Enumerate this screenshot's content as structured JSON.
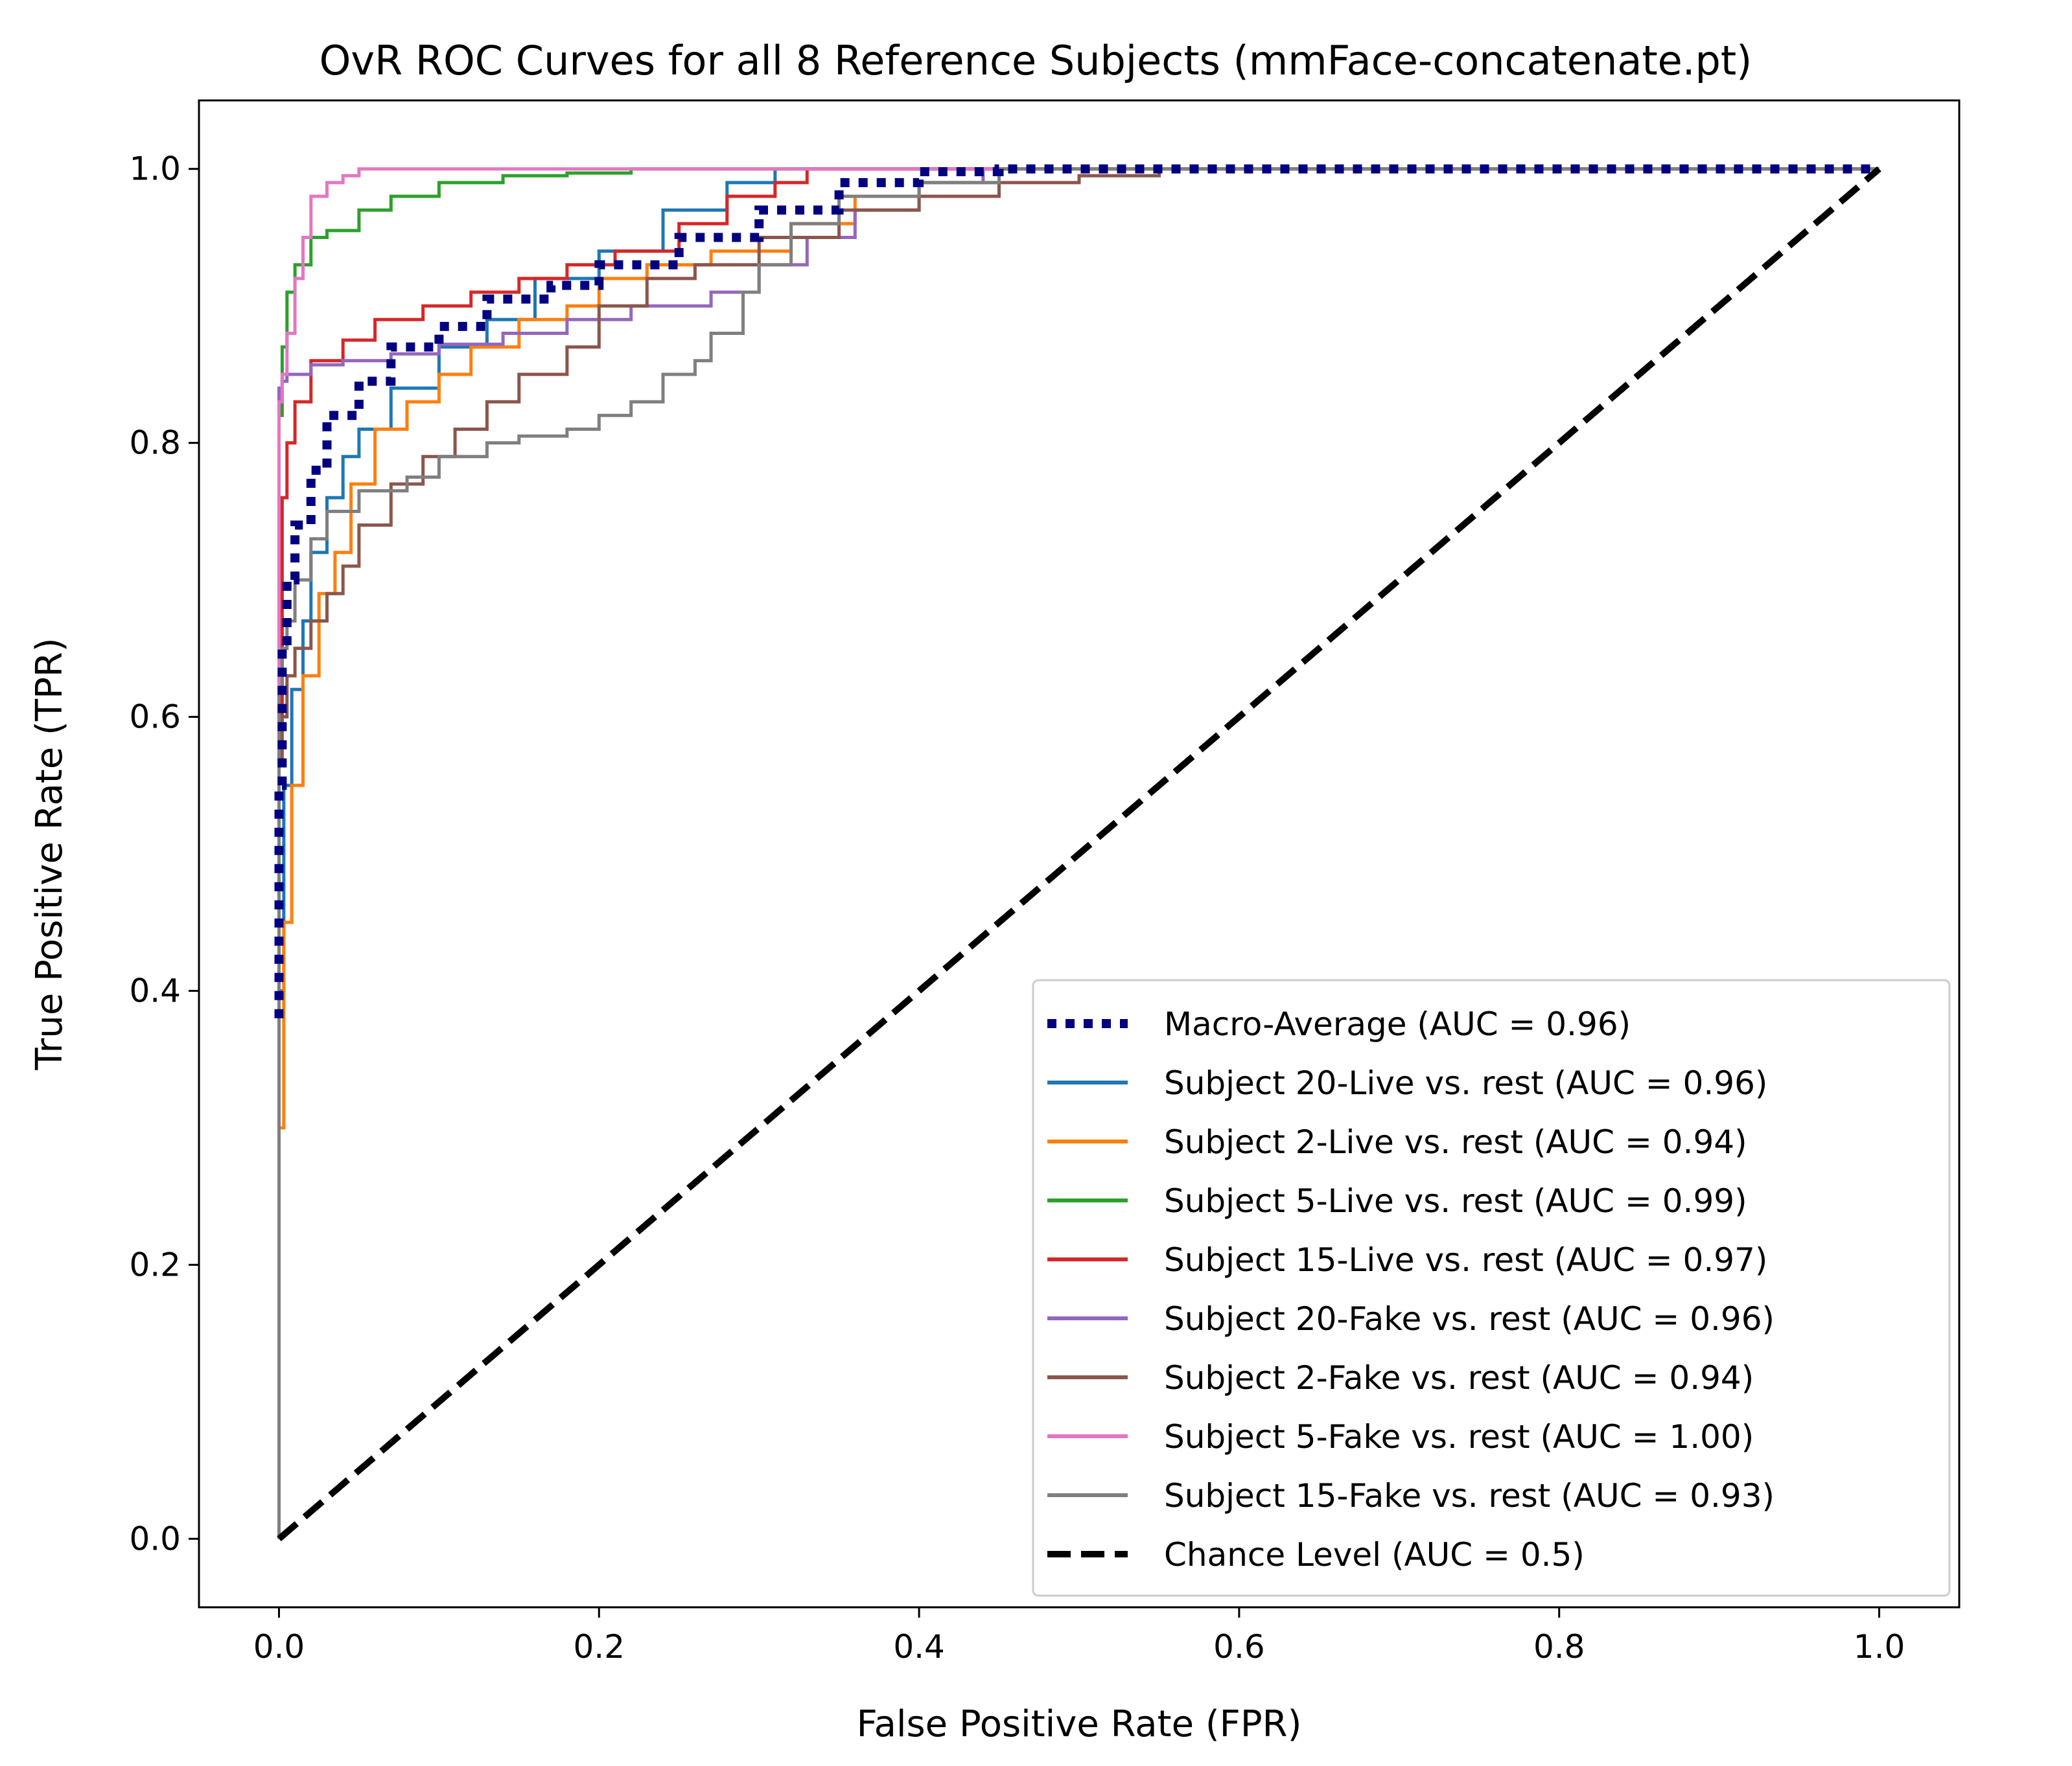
{
  "chart_data": {
    "type": "line",
    "title": "OvR ROC Curves for all 8 Reference Subjects (mmFace-concatenate.pt)",
    "xlabel": "False Positive Rate (FPR)",
    "ylabel": "True Positive Rate (TPR)",
    "xlim": [
      -0.05,
      1.05
    ],
    "ylim": [
      -0.05,
      1.05
    ],
    "xticks": [
      "0.0",
      "0.2",
      "0.4",
      "0.6",
      "0.8",
      "1.0"
    ],
    "yticks": [
      "0.0",
      "0.2",
      "0.4",
      "0.6",
      "0.8",
      "1.0"
    ],
    "grid": false,
    "legend_position": "lower-right",
    "series": [
      {
        "name": "Macro-Average (AUC = 0.96)",
        "color": "#000080",
        "style": "dotted",
        "x": [
          0,
          0.002,
          0.005,
          0.01,
          0.02,
          0.03,
          0.05,
          0.07,
          0.1,
          0.13,
          0.17,
          0.2,
          0.25,
          0.3,
          0.35,
          0.4,
          0.45,
          0.5,
          0.6,
          1
        ],
        "y": [
          0.38,
          0.55,
          0.65,
          0.7,
          0.74,
          0.78,
          0.82,
          0.845,
          0.87,
          0.885,
          0.905,
          0.915,
          0.93,
          0.95,
          0.97,
          0.99,
          0.998,
          1,
          1,
          1
        ]
      },
      {
        "name": "Subject 20-Live vs. rest (AUC = 0.96)",
        "color": "#1f77b4",
        "style": "solid",
        "x": [
          0,
          0.003,
          0.008,
          0.015,
          0.02,
          0.03,
          0.04,
          0.05,
          0.07,
          0.1,
          0.13,
          0.16,
          0.2,
          0.24,
          0.28,
          0.31,
          0.33,
          0.5,
          1
        ],
        "y": [
          0,
          0.4,
          0.55,
          0.62,
          0.67,
          0.72,
          0.76,
          0.79,
          0.81,
          0.84,
          0.87,
          0.89,
          0.92,
          0.94,
          0.97,
          0.99,
          1,
          1,
          1
        ]
      },
      {
        "name": "Subject 2-Live vs. rest (AUC = 0.94)",
        "color": "#ff7f0e",
        "style": "solid",
        "x": [
          0,
          0.003,
          0.008,
          0.015,
          0.025,
          0.035,
          0.045,
          0.06,
          0.08,
          0.1,
          0.12,
          0.15,
          0.18,
          0.2,
          0.23,
          0.27,
          0.32,
          0.36,
          0.4,
          0.45,
          0.5,
          1
        ],
        "y": [
          0,
          0.3,
          0.45,
          0.55,
          0.63,
          0.69,
          0.72,
          0.77,
          0.81,
          0.83,
          0.85,
          0.87,
          0.89,
          0.9,
          0.92,
          0.93,
          0.94,
          0.96,
          0.98,
          0.99,
          1,
          1
        ]
      },
      {
        "name": "Subject 5-Live vs. rest (AUC = 0.99)",
        "color": "#2ca02c",
        "style": "solid",
        "x": [
          0,
          0.002,
          0.005,
          0.01,
          0.02,
          0.03,
          0.05,
          0.07,
          0.1,
          0.14,
          0.18,
          0.22,
          0.28,
          0.4,
          1
        ],
        "y": [
          0,
          0.82,
          0.87,
          0.91,
          0.93,
          0.95,
          0.955,
          0.97,
          0.98,
          0.99,
          0.995,
          0.997,
          1,
          1,
          1
        ]
      },
      {
        "name": "Subject 15-Live vs. rest (AUC = 0.97)",
        "color": "#d62728",
        "style": "solid",
        "x": [
          0,
          0.002,
          0.005,
          0.01,
          0.02,
          0.04,
          0.06,
          0.09,
          0.12,
          0.15,
          0.18,
          0.21,
          0.25,
          0.28,
          0.31,
          0.33,
          0.35,
          0.5,
          1
        ],
        "y": [
          0,
          0.6,
          0.76,
          0.8,
          0.83,
          0.86,
          0.875,
          0.89,
          0.9,
          0.91,
          0.92,
          0.93,
          0.94,
          0.96,
          0.98,
          0.99,
          1,
          1,
          1
        ]
      },
      {
        "name": "Subject 20-Fake vs. rest (AUC = 0.96)",
        "color": "#9467bd",
        "style": "solid",
        "x": [
          0,
          0.002,
          0.005,
          0.02,
          0.04,
          0.07,
          0.1,
          0.14,
          0.18,
          0.22,
          0.27,
          0.3,
          0.33,
          0.36,
          0.4,
          0.44,
          0.47,
          1
        ],
        "y": [
          0,
          0.84,
          0.845,
          0.85,
          0.857,
          0.86,
          0.865,
          0.872,
          0.88,
          0.89,
          0.9,
          0.91,
          0.93,
          0.95,
          0.97,
          0.99,
          1,
          1
        ]
      },
      {
        "name": "Subject 2-Fake vs. rest (AUC = 0.94)",
        "color": "#8c564b",
        "style": "solid",
        "x": [
          0,
          0.002,
          0.005,
          0.01,
          0.02,
          0.03,
          0.04,
          0.05,
          0.07,
          0.09,
          0.11,
          0.13,
          0.15,
          0.18,
          0.2,
          0.23,
          0.26,
          0.3,
          0.35,
          0.4,
          0.45,
          0.5,
          0.55,
          0.6,
          1
        ],
        "y": [
          0,
          0.57,
          0.6,
          0.63,
          0.65,
          0.67,
          0.69,
          0.71,
          0.74,
          0.77,
          0.79,
          0.81,
          0.83,
          0.85,
          0.87,
          0.9,
          0.92,
          0.93,
          0.95,
          0.97,
          0.98,
          0.99,
          0.995,
          1,
          1
        ]
      },
      {
        "name": "Subject 5-Fake vs. rest (AUC = 1.00)",
        "color": "#e377c2",
        "style": "solid",
        "x": [
          0,
          0.002,
          0.005,
          0.01,
          0.015,
          0.02,
          0.03,
          0.04,
          0.05,
          0.07,
          0.1,
          1
        ],
        "y": [
          0,
          0.83,
          0.85,
          0.88,
          0.92,
          0.95,
          0.98,
          0.99,
          0.995,
          1,
          1,
          1
        ]
      },
      {
        "name": "Subject 15-Fake vs. rest (AUC = 0.93)",
        "color": "#7f7f7f",
        "style": "solid",
        "x": [
          0,
          0.002,
          0.005,
          0.01,
          0.02,
          0.03,
          0.05,
          0.08,
          0.1,
          0.13,
          0.15,
          0.18,
          0.2,
          0.22,
          0.24,
          0.26,
          0.27,
          0.29,
          0.3,
          0.32,
          0.35,
          0.4,
          0.45,
          0.5,
          1
        ],
        "y": [
          0,
          0.62,
          0.65,
          0.67,
          0.7,
          0.73,
          0.75,
          0.765,
          0.775,
          0.79,
          0.8,
          0.805,
          0.81,
          0.82,
          0.83,
          0.85,
          0.86,
          0.88,
          0.91,
          0.93,
          0.96,
          0.98,
          0.99,
          1,
          1
        ]
      },
      {
        "name": "Chance Level (AUC = 0.5)",
        "color": "#000000",
        "style": "dashed",
        "x": [
          0,
          1
        ],
        "y": [
          0,
          1
        ]
      }
    ]
  }
}
